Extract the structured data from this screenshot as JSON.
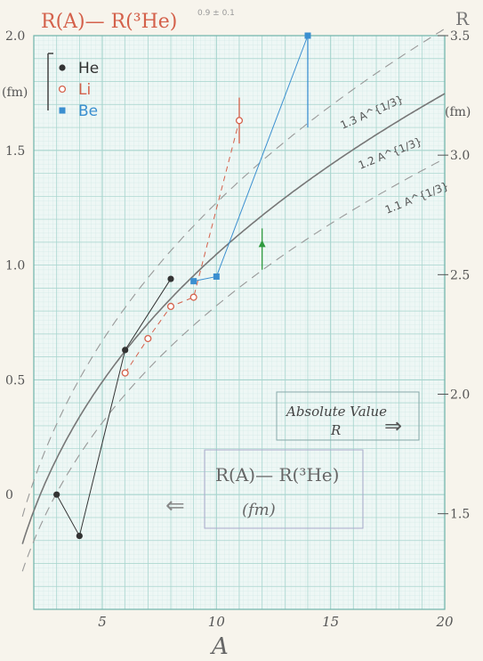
{
  "header": {
    "title": "R(A)— R(³He)",
    "small_note": "0.9 ± 0.1",
    "right_axis_letter": "R"
  },
  "chart_data": {
    "type": "scatter",
    "xlabel": "A",
    "ylabel_left": "(fm)",
    "ylabel_right": "(fm)",
    "xlim": [
      2,
      20
    ],
    "ylim_left": [
      -0.5,
      2.0
    ],
    "ylim_right": [
      1.1,
      3.5
    ],
    "x_ticks": [
      "5",
      "10",
      "15",
      "20"
    ],
    "left_ticks": [
      {
        "value": 0.0,
        "label": "0"
      },
      {
        "value": 0.5,
        "label": "0.5"
      },
      {
        "value": 1.0,
        "label": "1.0"
      },
      {
        "value": 1.5,
        "label": "1.5"
      },
      {
        "value": 2.0,
        "label": "2.0"
      }
    ],
    "right_ticks": [
      {
        "value": 1.5,
        "label": "1.5"
      },
      {
        "value": 2.0,
        "label": "2.0"
      },
      {
        "value": 2.5,
        "label": "2.5"
      },
      {
        "value": 3.0,
        "label": "3.0"
      },
      {
        "value": 3.5,
        "label": "3.5"
      }
    ],
    "legend": {
      "placement": "top-left",
      "entries": [
        {
          "name": "He",
          "color": "#333333",
          "marker": "filled-circle"
        },
        {
          "name": "Li",
          "color": "#d4614b",
          "marker": "open-circle"
        },
        {
          "name": "Be",
          "color": "#3b8fd0",
          "marker": "filled-square"
        }
      ]
    },
    "series": [
      {
        "name": "He",
        "color": "#333333",
        "marker": "filled-circle",
        "points": [
          [
            3,
            0.0
          ],
          [
            4,
            -0.18
          ],
          [
            6,
            0.63
          ],
          [
            8,
            0.94
          ]
        ]
      },
      {
        "name": "Li",
        "color": "#d4614b",
        "marker": "open-circle",
        "points": [
          [
            6,
            0.53
          ],
          [
            7,
            0.68
          ],
          [
            8,
            0.82
          ],
          [
            9,
            0.86
          ],
          [
            11,
            1.63
          ]
        ],
        "error_bar": {
          "x": 11,
          "low": 1.53,
          "high": 1.73
        }
      },
      {
        "name": "Be",
        "color": "#3b8fd0",
        "marker": "filled-square",
        "points": [
          [
            9,
            0.93
          ],
          [
            10,
            0.95
          ],
          [
            14,
            2.0
          ]
        ],
        "error_bar": {
          "x": 14,
          "low": 1.6,
          "high": 2.0
        }
      },
      {
        "name": "",
        "color": "#2f9a3f",
        "marker": "filled-triangle",
        "points": [
          [
            12,
            1.09
          ]
        ],
        "error_bar": {
          "x": 12,
          "low": 0.98,
          "high": 1.16
        }
      }
    ],
    "curves": [
      {
        "label": "1.3 A^{1/3}",
        "coef": 1.3,
        "style": "dashed"
      },
      {
        "label": "1.2 A^{1/3}",
        "coef": 1.2,
        "style": "solid"
      },
      {
        "label": "1.1 A^{1/3}",
        "coef": 1.1,
        "style": "dashed"
      }
    ],
    "annotations": {
      "box_right": {
        "line1": "Absolute Value",
        "line2": "R",
        "arrow": "⇒"
      },
      "box_left": {
        "line1": "R(A)— R(³He)",
        "line2": "(fm)",
        "arrow": "⇐"
      }
    }
  }
}
